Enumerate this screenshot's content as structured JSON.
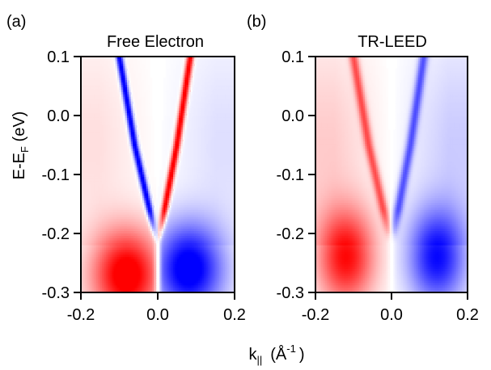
{
  "panels": [
    {
      "letter": "(a)",
      "title": "Free Electron"
    },
    {
      "letter": "(b)",
      "title": "TR-LEED"
    }
  ],
  "xlabel": {
    "main": "k",
    "sub": "||",
    "unit_open": "(Å",
    "unit_sup": "-1",
    "unit_close": ")"
  },
  "ylabel": {
    "main": "E-E",
    "sub": "F",
    "unit": " (eV)"
  },
  "chart_data": [
    {
      "type": "heatmap",
      "title": "Free Electron",
      "xlim": [
        -0.2,
        0.2
      ],
      "ylim": [
        -0.3,
        0.1
      ],
      "xticks": [
        -0.2,
        0.0,
        0.2
      ],
      "xtick_labels": [
        "-0.2",
        "0.0",
        "0.2"
      ],
      "yticks": [
        0.1,
        0.0,
        -0.1,
        -0.2,
        -0.3
      ],
      "ytick_labels": [
        "0.1",
        "0.0",
        "-0.1",
        "-0.2",
        "-0.3"
      ],
      "colormap": {
        "negative": "#0000ff",
        "zero": "#ffffff",
        "positive": "#ff0000"
      },
      "features": {
        "dirac_point_energy": -0.22,
        "left_branch": {
          "k": [
            0.0,
            -0.06,
            -0.1
          ],
          "E": [
            -0.22,
            -0.05,
            0.1
          ],
          "sign": "negative"
        },
        "right_branch": {
          "k": [
            0.0,
            0.05,
            0.085
          ],
          "E": [
            -0.22,
            -0.05,
            0.1
          ],
          "sign": "positive"
        },
        "lower_left_lobe": {
          "sign": "positive",
          "peak_k": -0.08,
          "peak_E": -0.27
        },
        "lower_right_lobe": {
          "sign": "negative",
          "peak_k": 0.08,
          "peak_E": -0.26
        }
      }
    },
    {
      "type": "heatmap",
      "title": "TR-LEED",
      "xlim": [
        -0.2,
        0.2
      ],
      "ylim": [
        -0.3,
        0.1
      ],
      "xticks": [
        -0.2,
        0.0,
        0.2
      ],
      "xtick_labels": [
        "-0.2",
        "0.0",
        "0.2"
      ],
      "yticks": [
        0.1,
        0.0,
        -0.1,
        -0.2,
        -0.3
      ],
      "ytick_labels": [
        "0.1",
        "0.0",
        "-0.1",
        "-0.2",
        "-0.3"
      ],
      "colormap": {
        "negative": "#0000ff",
        "zero": "#ffffff",
        "positive": "#ff0000"
      },
      "features": {
        "dirac_point_energy": -0.22,
        "left_branch": {
          "k": [
            0.0,
            -0.06,
            -0.1
          ],
          "E": [
            -0.22,
            -0.05,
            0.1
          ],
          "sign": "positive"
        },
        "right_branch": {
          "k": [
            0.0,
            0.05,
            0.085
          ],
          "E": [
            -0.22,
            -0.05,
            0.1
          ],
          "sign": "negative"
        },
        "lower_left_lobe": {
          "sign": "positive",
          "peak_k": -0.12,
          "peak_E": -0.24
        },
        "lower_right_lobe": {
          "sign": "negative",
          "peak_k": 0.12,
          "peak_E": -0.24
        }
      }
    }
  ]
}
